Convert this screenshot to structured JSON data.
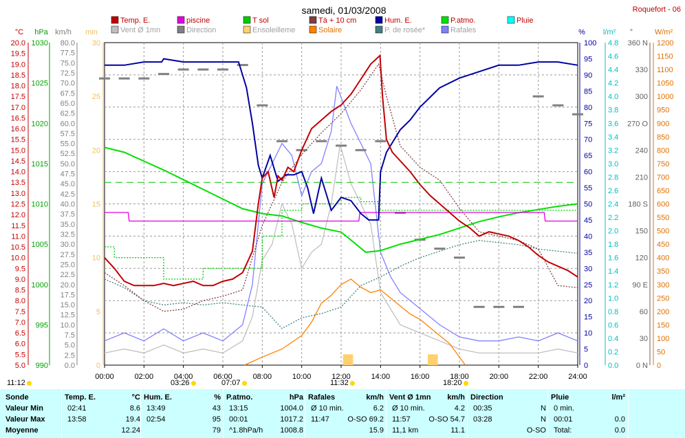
{
  "header": {
    "title": "samedi, 01/03/2008",
    "station": "Roquefort - 06"
  },
  "legend": [
    {
      "label": "Temp. E.",
      "color": "#c00000"
    },
    {
      "label": "piscine",
      "color": "#e000e0"
    },
    {
      "label": "T sol",
      "color": "#00cc00"
    },
    {
      "label": "Tà + 10 cm",
      "color": "#804040"
    },
    {
      "label": "Hum. E.",
      "color": "#0000a0"
    },
    {
      "label": "P.atmo.",
      "color": "#00e000"
    },
    {
      "label": "Pluie",
      "color": "#00ffff"
    },
    {
      "label": "Vent Ø 1mn",
      "color": "#c0c0c0"
    },
    {
      "label": "Direction",
      "color": "#808080"
    },
    {
      "label": "Ensoleilleme",
      "color": "#ffd070"
    },
    {
      "label": "Solaire",
      "color": "#ff8000"
    },
    {
      "label": "P. de rosée*",
      "color": "#408080"
    },
    {
      "label": "Rafales",
      "color": "#8080ff"
    }
  ],
  "axes": {
    "temp": {
      "unit": "°C",
      "min": 5,
      "max": 20,
      "step": 0.5,
      "color": "#c00000"
    },
    "press": {
      "unit": "hPa",
      "min": 990,
      "max": 1030,
      "step": 5,
      "color": "#00a000"
    },
    "wind": {
      "unit": "km/h",
      "min": 0,
      "max": 80,
      "step": 2.5,
      "color": "#808080"
    },
    "minutes": {
      "unit": "min",
      "min": 0,
      "max": 30,
      "step": 5,
      "color": "#f0c060"
    },
    "hum": {
      "unit": "%",
      "min": 0,
      "max": 100,
      "step": 5,
      "color": "#0000a0"
    },
    "rain": {
      "unit": "l/m²",
      "min": 0,
      "max": 4.8,
      "step": 0.2,
      "color": "#00c0c0"
    },
    "dir": {
      "unit": "°",
      "min": 0,
      "max": 360,
      "step": 30,
      "color": "#606060",
      "labels": [
        "0 N",
        "30",
        "60",
        "90 E",
        "120",
        "150",
        "180 S",
        "210",
        "240",
        "270 O",
        "300",
        "330",
        "360 N"
      ]
    },
    "solar": {
      "unit": "W/m²",
      "min": 0,
      "max": 1200,
      "step": 50,
      "color": "#e07000"
    }
  },
  "x_axis": {
    "ticks": [
      "00:00",
      "02:00",
      "04:00",
      "06:00",
      "08:00",
      "10:00",
      "12:00",
      "14:00",
      "16:00",
      "18:00",
      "20:00",
      "22:00",
      "24:00"
    ]
  },
  "sun_events": [
    "11:12",
    "03:26",
    "07:07",
    "11:32",
    "18:20"
  ],
  "chart_data": {
    "type": "line",
    "title": "samedi, 01/03/2008",
    "x_unit": "hour",
    "xlim": [
      0,
      24
    ],
    "series": [
      {
        "name": "Temp. E.",
        "unit": "°C",
        "color": "#c00000",
        "x": [
          0,
          0.5,
          1,
          1.5,
          2,
          2.5,
          3,
          3.5,
          4,
          4.5,
          5,
          5.5,
          6,
          6.5,
          7,
          7.5,
          7.8,
          8,
          8.3,
          8.6,
          8.8,
          9,
          9.3,
          9.6,
          10,
          10.5,
          11,
          11.5,
          12,
          12.5,
          13,
          13.5,
          13.97,
          14.1,
          14.3,
          14.6,
          15,
          15.5,
          16,
          16.5,
          17,
          17.5,
          18,
          18.5,
          19,
          19.5,
          20,
          20.5,
          21,
          21.5,
          22,
          22.5,
          23,
          23.5,
          24
        ],
        "y": [
          10.0,
          9.5,
          8.9,
          8.7,
          8.7,
          8.7,
          8.8,
          8.7,
          8.8,
          8.9,
          8.7,
          8.7,
          8.9,
          9.0,
          9.3,
          10.3,
          12.5,
          13.7,
          14.0,
          12.8,
          13.8,
          13.6,
          14.2,
          14.0,
          15.0,
          16.0,
          16.4,
          16.8,
          17.1,
          17.6,
          18.3,
          19.0,
          19.4,
          17.5,
          15.5,
          14.9,
          14.5,
          14.0,
          13.4,
          12.9,
          12.5,
          12.1,
          11.7,
          11.4,
          11.0,
          11.2,
          11.1,
          11.0,
          10.8,
          10.5,
          10.1,
          9.8,
          9.6,
          9.4,
          9.1
        ]
      },
      {
        "name": "piscine",
        "unit": "°C",
        "color": "#e000e0",
        "x": [
          0,
          1.2,
          1.25,
          12.9,
          12.95,
          22.3,
          22.35,
          24
        ],
        "y": [
          12.1,
          12.1,
          11.7,
          11.7,
          12.1,
          12.1,
          11.7,
          11.7
        ]
      },
      {
        "name": "T sol",
        "unit": "°C",
        "color": "#00cc00",
        "x": [
          0,
          0.5,
          0.5,
          3,
          3,
          5,
          5,
          8,
          8,
          9,
          9,
          10,
          10,
          12,
          12,
          13,
          13,
          13.9,
          13.9,
          24
        ],
        "y": [
          10.5,
          10.5,
          10.0,
          10.0,
          9.0,
          9.0,
          9.5,
          9.5,
          11.0,
          11.0,
          12.2,
          12.2,
          12.5,
          12.5,
          12.8,
          12.8,
          12.6,
          12.6,
          12.2,
          12.2
        ]
      },
      {
        "name": "P.atmo.",
        "unit": "hPa",
        "color": "#00e000",
        "x": [
          0,
          1,
          2,
          3,
          4,
          5,
          6,
          7,
          8,
          9,
          10,
          11,
          12,
          13,
          13.25,
          14,
          15,
          16,
          17,
          18,
          19,
          20,
          21,
          22,
          23,
          24
        ],
        "y": [
          1017.0,
          1016.4,
          1015.3,
          1014.2,
          1013.0,
          1011.8,
          1010.6,
          1009.4,
          1008.8,
          1008.5,
          1007.7,
          1007.0,
          1006.5,
          1004.5,
          1004.0,
          1004.2,
          1005.0,
          1005.6,
          1006.2,
          1007.0,
          1007.8,
          1008.4,
          1008.9,
          1009.3,
          1009.7,
          1010.0
        ]
      },
      {
        "name": "Hum. E.",
        "unit": "%",
        "color": "#0000a0",
        "x": [
          0,
          1,
          2,
          2.9,
          3,
          4,
          5,
          6,
          6.8,
          7.2,
          7.5,
          7.8,
          8,
          8.4,
          8.8,
          9.2,
          9.6,
          10,
          10.3,
          10.6,
          11,
          11.5,
          12,
          12.5,
          13,
          13.4,
          13.9,
          14,
          14.3,
          15,
          15.5,
          16,
          17,
          18,
          19,
          20,
          21,
          22,
          23,
          24
        ],
        "y": [
          93,
          93,
          94,
          94,
          95,
          94,
          94,
          94,
          94,
          86,
          75,
          62,
          58,
          65,
          57,
          59,
          59,
          60,
          55,
          47,
          58,
          48,
          52,
          51,
          47,
          45,
          45,
          60,
          66,
          73,
          76,
          80,
          86,
          89,
          91,
          93,
          93,
          94,
          94,
          93
        ]
      },
      {
        "name": "Solaire",
        "unit": "W/m²",
        "color": "#ff8000",
        "x": [
          7.1,
          8,
          9,
          10,
          10.5,
          11,
          11.5,
          12,
          12.5,
          13,
          13.5,
          14,
          14.5,
          15,
          15.5,
          16,
          16.5,
          17,
          17.5,
          18,
          18.3
        ],
        "y": [
          0,
          30,
          60,
          110,
          160,
          230,
          260,
          300,
          320,
          290,
          270,
          280,
          250,
          220,
          190,
          170,
          140,
          110,
          80,
          30,
          0
        ]
      },
      {
        "name": "P. de rosée*",
        "unit": "°C",
        "color": "#408080",
        "x": [
          0,
          1,
          2,
          3,
          4,
          5,
          6,
          7,
          8,
          9,
          10,
          11,
          12,
          13,
          14,
          15,
          16,
          17,
          18,
          19,
          20,
          21,
          22,
          23,
          24
        ],
        "y": [
          9.0,
          8.6,
          8.0,
          7.8,
          7.9,
          7.8,
          7.9,
          7.8,
          7.7,
          6.7,
          7.2,
          7.4,
          7.7,
          8.7,
          9.1,
          9.6,
          10.0,
          10.3,
          10.6,
          10.8,
          10.7,
          10.6,
          10.4,
          10.3,
          10.2
        ]
      },
      {
        "name": "Tà + 10 cm",
        "unit": "°C",
        "color": "#804040",
        "x": [
          0,
          1,
          2,
          3,
          4,
          5,
          6,
          7,
          8,
          9,
          10,
          11,
          12,
          13,
          13.9,
          14.3,
          15,
          16,
          17,
          18,
          19,
          20,
          21,
          22,
          23,
          24
        ],
        "y": [
          9.3,
          8.7,
          8.0,
          7.5,
          7.6,
          8.0,
          8.2,
          8.5,
          11.5,
          13.5,
          14.8,
          15.8,
          16.7,
          17.8,
          19.0,
          17.5,
          15.2,
          14.2,
          13.6,
          12.3,
          11.2,
          11.0,
          10.8,
          10.4,
          8.7,
          8.6
        ]
      },
      {
        "name": "Vent Ø 1mn",
        "unit": "km/h",
        "color": "#c0c0c0",
        "x": [
          0,
          1,
          2,
          3,
          4,
          5,
          6,
          7,
          7.5,
          8,
          8.5,
          9,
          9.5,
          10,
          10.5,
          11,
          11.5,
          11.95,
          12.5,
          13,
          13.5,
          14,
          14.5,
          15,
          16,
          17,
          18,
          19,
          20,
          21,
          22,
          23,
          24
        ],
        "y": [
          3,
          4,
          3,
          5,
          3,
          4,
          3,
          6,
          12,
          26,
          30,
          40,
          35,
          24,
          28,
          30,
          40,
          54.7,
          45,
          40,
          35,
          18,
          14,
          10,
          8,
          6,
          4,
          3,
          3,
          3,
          3,
          4,
          3
        ]
      },
      {
        "name": "Rafales",
        "unit": "km/h",
        "color": "#8080ff",
        "x": [
          0,
          1,
          2,
          3,
          4,
          5,
          6,
          7,
          7.5,
          8,
          8.5,
          9,
          9.5,
          10,
          10.5,
          11,
          11.5,
          11.78,
          12.5,
          13,
          13.5,
          14,
          14.5,
          15,
          16,
          17,
          18,
          19,
          20,
          21,
          22,
          23,
          24
        ],
        "y": [
          6,
          8,
          6,
          9,
          6,
          8,
          6,
          10,
          20,
          45,
          50,
          55,
          52,
          42,
          48,
          50,
          58,
          69.2,
          60,
          55,
          50,
          28,
          22,
          18,
          14,
          10,
          7,
          6,
          6,
          7,
          6,
          8,
          6
        ]
      },
      {
        "name": "Direction",
        "unit": "°",
        "color": "#808080",
        "x": [
          0,
          1,
          2,
          3,
          4,
          5,
          6,
          7,
          8,
          9,
          10,
          11,
          12,
          13,
          14,
          15,
          16,
          17,
          18,
          19,
          20,
          21,
          22,
          23,
          24
        ],
        "y": [
          320,
          320,
          320,
          325,
          330,
          330,
          330,
          335,
          290,
          250,
          240,
          250,
          245,
          240,
          250,
          170,
          140,
          130,
          120,
          65,
          65,
          65,
          300,
          290,
          280
        ]
      },
      {
        "name": "Ensoleilleme",
        "unit": "min",
        "color": "#ffd070",
        "x": [
          12.2,
          12.3,
          12.4,
          12.5,
          16.5,
          16.6,
          16.7,
          16.8
        ],
        "y": [
          1,
          1,
          1,
          1,
          1,
          1,
          1,
          1
        ]
      }
    ]
  },
  "stats": {
    "headers": [
      {
        "label": "Sonde"
      },
      {
        "label": "Temp. E.",
        "unit": "°C"
      },
      {
        "label": "Hum. E.",
        "unit": "%"
      },
      {
        "label": "P.atmo.",
        "unit": "hPa"
      },
      {
        "label": "Rafales",
        "unit": "km/h"
      },
      {
        "label": "Vent Ø 1mn",
        "unit": "km/h"
      },
      {
        "label": "Direction"
      },
      {
        "label": "Pluie",
        "unit": "l/m²"
      }
    ],
    "rows": [
      {
        "label": "Valeur Min",
        "temp": [
          "02:41",
          "8.6"
        ],
        "hum": [
          "13:49",
          "43"
        ],
        "press": [
          "13:15",
          "1004.0"
        ],
        "gust": [
          "Ø 10 min.",
          "6.2"
        ],
        "wind": [
          "Ø 10 min.",
          "4.2"
        ],
        "dir": [
          "00:35",
          "N"
        ],
        "rain": [
          "0 min.",
          ""
        ]
      },
      {
        "label": "Valeur Max",
        "temp": [
          "13:58",
          "19.4"
        ],
        "hum": [
          "02:54",
          "95"
        ],
        "press": [
          "00:01",
          "1017.2"
        ],
        "gust": [
          "11:47",
          "O-SO 69.2"
        ],
        "wind": [
          "11:57",
          "O-SO 54.7"
        ],
        "dir": [
          "03:28",
          "N"
        ],
        "rain": [
          "00:01",
          "0.0"
        ]
      },
      {
        "label": "Moyenne",
        "temp": [
          "",
          "12.24"
        ],
        "hum": [
          "",
          "79"
        ],
        "press": [
          "^1.8hPa/h",
          "1008.8"
        ],
        "gust": [
          "",
          "15.9"
        ],
        "wind": [
          "11,1 km",
          "11.1"
        ],
        "dir": [
          "",
          "O-SO"
        ],
        "rain": [
          "Total:",
          "0.0"
        ]
      }
    ]
  }
}
